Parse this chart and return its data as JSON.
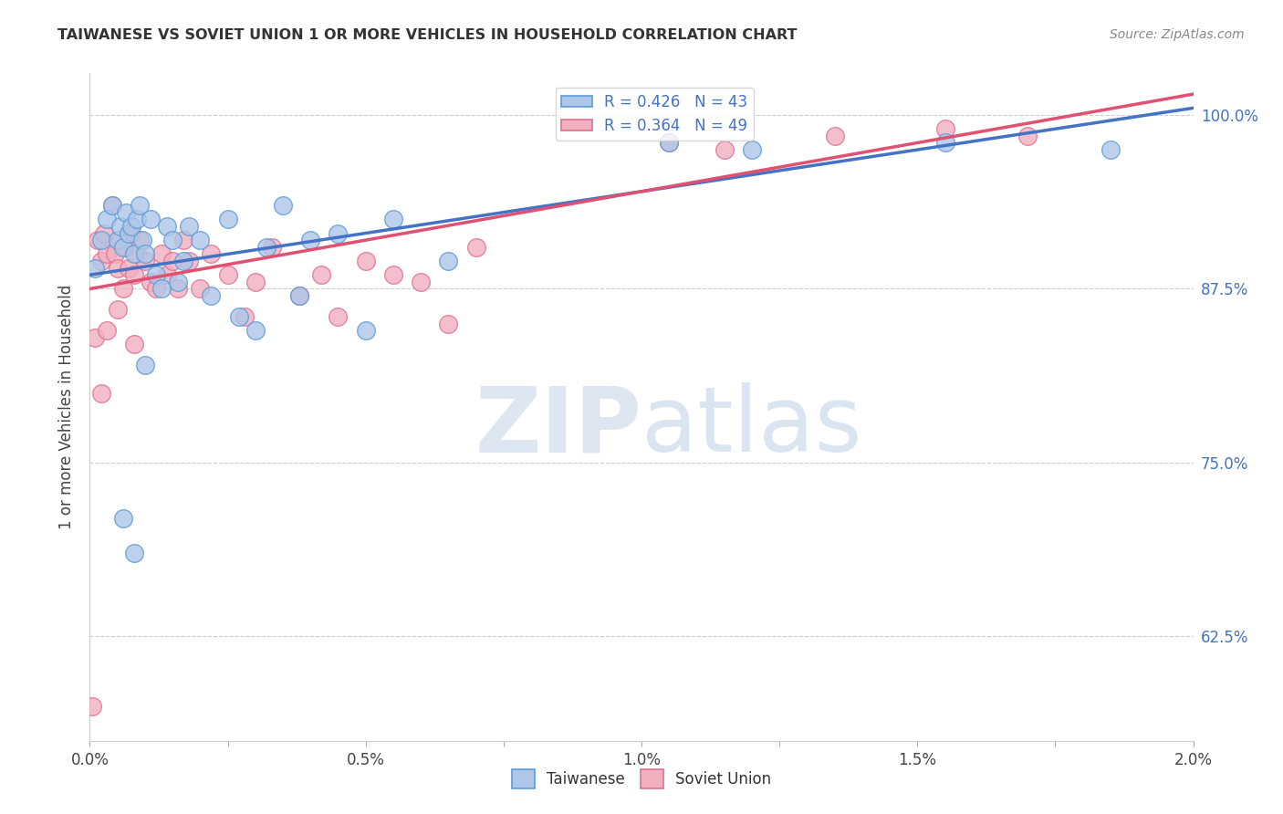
{
  "title": "TAIWANESE VS SOVIET UNION 1 OR MORE VEHICLES IN HOUSEHOLD CORRELATION CHART",
  "source": "Source: ZipAtlas.com",
  "ylabel": "1 or more Vehicles in Household",
  "xlim": [
    0.0,
    2.0
  ],
  "ylim": [
    55.0,
    103.0
  ],
  "yticks": [
    62.5,
    75.0,
    87.5,
    100.0
  ],
  "ytick_labels": [
    "62.5%",
    "75.0%",
    "87.5%",
    "100.0%"
  ],
  "xtick_vals": [
    0.0,
    0.25,
    0.5,
    0.75,
    1.0,
    1.25,
    1.5,
    1.75,
    2.0
  ],
  "xtick_labels": [
    "0.0%",
    "",
    "0.5%",
    "",
    "1.0%",
    "",
    "1.5%",
    "",
    "2.0%"
  ],
  "taiwanese_color": "#aec6e8",
  "soviet_color": "#f0b0c0",
  "taiwanese_edge": "#5b9bd5",
  "soviet_edge": "#e07090",
  "line_blue": "#4472c4",
  "line_pink": "#e05070",
  "R_taiwanese": 0.426,
  "N_taiwanese": 43,
  "R_soviet": 0.364,
  "N_soviet": 49,
  "tw_line_y0": 88.5,
  "tw_line_y1": 100.5,
  "sv_line_y0": 87.5,
  "sv_line_y1": 101.5,
  "taiwanese_x": [
    0.01,
    0.02,
    0.03,
    0.04,
    0.05,
    0.055,
    0.06,
    0.065,
    0.07,
    0.075,
    0.08,
    0.085,
    0.09,
    0.095,
    0.1,
    0.11,
    0.12,
    0.13,
    0.14,
    0.15,
    0.16,
    0.17,
    0.18,
    0.2,
    0.22,
    0.25,
    0.27,
    0.3,
    0.32,
    0.35,
    0.38,
    0.4,
    0.45,
    0.5,
    0.55,
    0.65,
    1.05,
    1.2,
    1.55,
    1.85,
    0.06,
    0.08,
    0.1
  ],
  "taiwanese_y": [
    89.0,
    91.0,
    92.5,
    93.5,
    91.0,
    92.0,
    90.5,
    93.0,
    91.5,
    92.0,
    90.0,
    92.5,
    93.5,
    91.0,
    90.0,
    92.5,
    88.5,
    87.5,
    92.0,
    91.0,
    88.0,
    89.5,
    92.0,
    91.0,
    87.0,
    92.5,
    85.5,
    84.5,
    90.5,
    93.5,
    87.0,
    91.0,
    91.5,
    84.5,
    92.5,
    89.5,
    98.0,
    97.5,
    98.0,
    97.5,
    71.0,
    68.5,
    82.0
  ],
  "soviet_x": [
    0.005,
    0.01,
    0.015,
    0.02,
    0.025,
    0.03,
    0.04,
    0.045,
    0.05,
    0.055,
    0.06,
    0.065,
    0.07,
    0.075,
    0.08,
    0.085,
    0.09,
    0.1,
    0.11,
    0.12,
    0.13,
    0.14,
    0.15,
    0.16,
    0.17,
    0.18,
    0.2,
    0.22,
    0.25,
    0.28,
    0.3,
    0.33,
    0.38,
    0.42,
    0.45,
    0.5,
    0.55,
    0.6,
    0.65,
    0.7,
    1.05,
    1.15,
    1.35,
    1.55,
    1.7,
    0.02,
    0.03,
    0.05,
    0.08
  ],
  "soviet_y": [
    57.5,
    84.0,
    91.0,
    89.5,
    91.5,
    90.0,
    93.5,
    90.0,
    89.0,
    91.0,
    87.5,
    90.5,
    89.0,
    91.5,
    88.5,
    90.0,
    91.0,
    89.5,
    88.0,
    87.5,
    90.0,
    88.5,
    89.5,
    87.5,
    91.0,
    89.5,
    87.5,
    90.0,
    88.5,
    85.5,
    88.0,
    90.5,
    87.0,
    88.5,
    85.5,
    89.5,
    88.5,
    88.0,
    85.0,
    90.5,
    98.0,
    97.5,
    98.5,
    99.0,
    98.5,
    80.0,
    84.5,
    86.0,
    83.5
  ]
}
